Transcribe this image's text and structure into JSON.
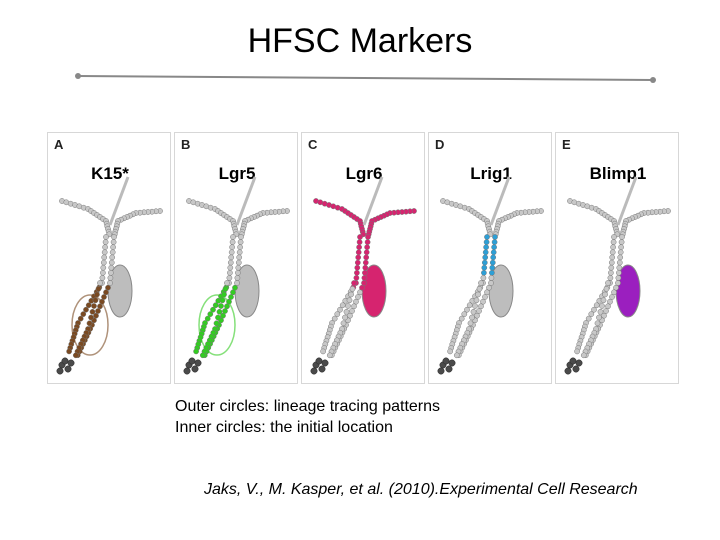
{
  "title": "HFSC Markers",
  "panels": [
    {
      "letter": "A",
      "marker": "K15*",
      "color": "#7a4a22",
      "region": "bulb"
    },
    {
      "letter": "B",
      "marker": "Lgr5",
      "color": "#33cc22",
      "region": "bulb"
    },
    {
      "letter": "C",
      "marker": "Lgr6",
      "color": "#d6246f",
      "region": "upper"
    },
    {
      "letter": "D",
      "marker": "Lrig1",
      "color": "#2d9fd6",
      "region": "isthmus"
    },
    {
      "letter": "E",
      "marker": "Blimp1",
      "color": "#9b1fbf",
      "region": "gland"
    }
  ],
  "caption": {
    "line1": "Outer circles: lineage tracing patterns",
    "line2": "Inner circles: the initial location"
  },
  "citation": "Jaks, V., M. Kasper, et al. (2010).Experimental Cell Research"
}
